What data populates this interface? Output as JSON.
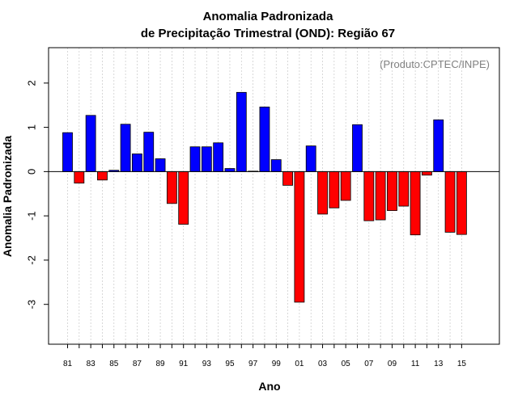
{
  "chart_data": {
    "type": "bar",
    "title": "Anomalia Padronizada",
    "subtitle": "de Precipitação Trimestral (OND): Região 67",
    "xlabel": "Ano",
    "ylabel": "Anomalia Padronizada",
    "annotation": "(Produto:CPTEC/INPE)",
    "ylim": [
      -3.9,
      2.8
    ],
    "yticks": [
      -3,
      -2,
      -1,
      0,
      1,
      2
    ],
    "ytick_labels": [
      "-3",
      "-2",
      "-1",
      "0",
      "1",
      "2"
    ],
    "xtick_labels": [
      "81",
      "83",
      "85",
      "87",
      "89",
      "91",
      "93",
      "95",
      "97",
      "99",
      "01",
      "03",
      "05",
      "07",
      "09",
      "11",
      "13",
      "15"
    ],
    "categories": [
      "1981",
      "1982",
      "1983",
      "1984",
      "1985",
      "1986",
      "1987",
      "1988",
      "1989",
      "1990",
      "1991",
      "1992",
      "1993",
      "1994",
      "1995",
      "1996",
      "1997",
      "1998",
      "1999",
      "2000",
      "2001",
      "2002",
      "2003",
      "2004",
      "2005",
      "2006",
      "2007",
      "2008",
      "2009",
      "2010",
      "2011",
      "2012",
      "2013",
      "2014",
      "2015"
    ],
    "values": [
      0.88,
      -0.26,
      1.27,
      -0.19,
      0.03,
      1.07,
      0.4,
      0.89,
      0.29,
      -0.72,
      -1.19,
      0.56,
      0.56,
      0.65,
      0.07,
      1.79,
      0.01,
      1.46,
      0.27,
      -0.31,
      -2.95,
      0.58,
      -0.96,
      -0.82,
      -0.65,
      1.06,
      -1.11,
      -1.09,
      -0.88,
      -0.78,
      -1.43,
      -0.08,
      1.17,
      -1.37,
      -1.42
    ],
    "positive_color": "#0000ff",
    "negative_color": "#ff0000",
    "grid": true
  }
}
